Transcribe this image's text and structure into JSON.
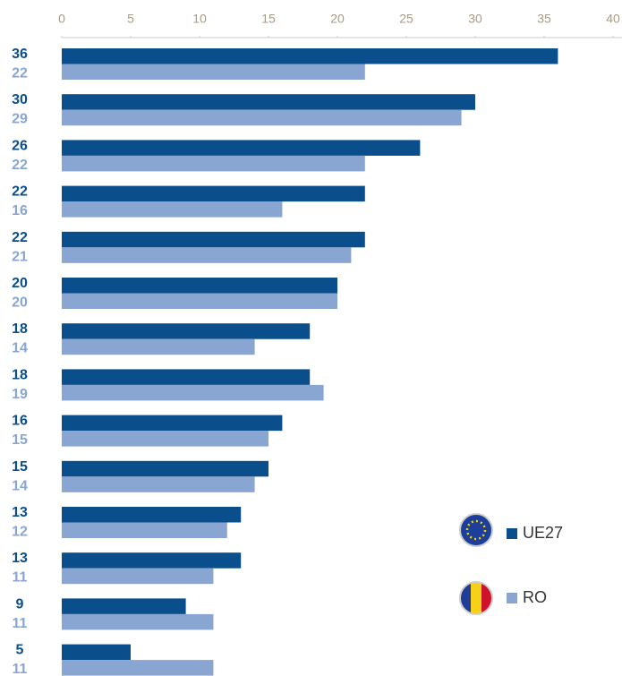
{
  "chart_data": {
    "type": "bar",
    "orientation": "horizontal",
    "categories": [
      null,
      null,
      null,
      null,
      null,
      null,
      null,
      null,
      null,
      null,
      null,
      null,
      null,
      null
    ],
    "series": [
      {
        "name": "UE27",
        "color": "#0b4e8c",
        "values": [
          36,
          30,
          26,
          22,
          22,
          20,
          18,
          18,
          16,
          15,
          13,
          13,
          9,
          5
        ]
      },
      {
        "name": "RO",
        "color": "#89a5d2",
        "values": [
          22,
          29,
          22,
          16,
          21,
          20,
          14,
          19,
          15,
          14,
          12,
          11,
          11,
          11
        ]
      }
    ],
    "xlim": [
      0,
      40
    ],
    "xticks": [
      0,
      5,
      10,
      15,
      20,
      25,
      30,
      35,
      40
    ]
  }
}
